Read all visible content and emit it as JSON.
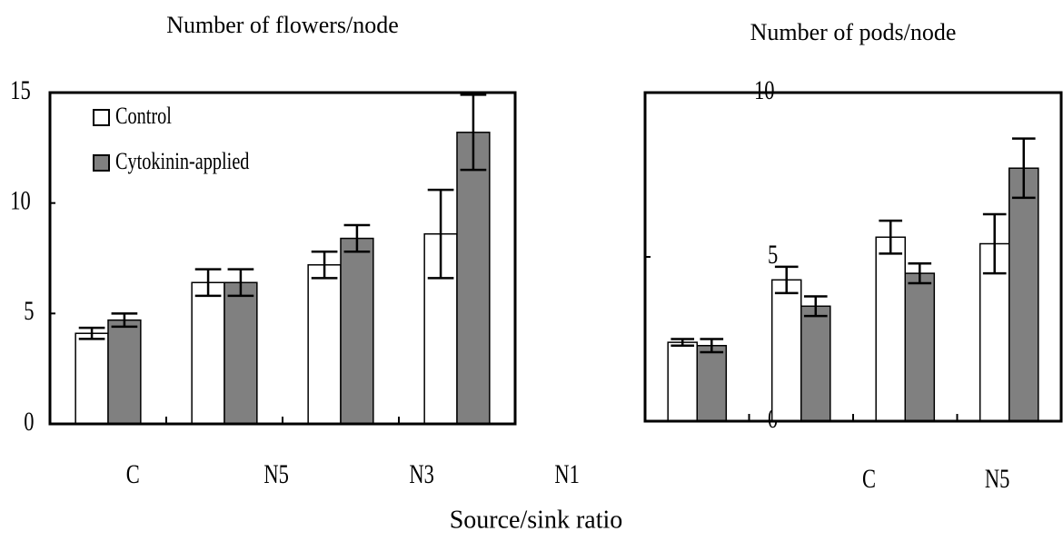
{
  "xlabel": "Source/sink ratio",
  "chart_data": [
    {
      "type": "bar",
      "title": "Number of flowers/node",
      "categories": [
        "C",
        "N5",
        "N3",
        "N1"
      ],
      "series": [
        {
          "name": "Control",
          "color": "#ffffff",
          "values": [
            4.1,
            6.4,
            7.2,
            8.6
          ],
          "errors": [
            0.25,
            0.6,
            0.6,
            2.0
          ]
        },
        {
          "name": "Cytokinin-applied",
          "color": "#808080",
          "values": [
            4.7,
            6.4,
            8.4,
            13.2
          ],
          "errors": [
            0.3,
            0.6,
            0.6,
            1.7
          ]
        }
      ],
      "ylim": [
        0,
        15
      ],
      "yticks": [
        0,
        5,
        10,
        15
      ],
      "legend": "upper left"
    },
    {
      "type": "bar",
      "title": "Number of pods/node",
      "categories": [
        "C",
        "N5",
        "N3",
        "N1"
      ],
      "series": [
        {
          "name": "Control",
          "color": "#ffffff",
          "values": [
            2.4,
            4.3,
            5.6,
            5.4
          ],
          "errors": [
            0.1,
            0.4,
            0.5,
            0.9
          ]
        },
        {
          "name": "Cytokinin-applied",
          "color": "#808080",
          "values": [
            2.3,
            3.5,
            4.5,
            7.7
          ],
          "errors": [
            0.2,
            0.3,
            0.3,
            0.9
          ]
        }
      ],
      "ylim": [
        0,
        10
      ],
      "yticks": [
        0,
        5,
        10
      ]
    }
  ]
}
